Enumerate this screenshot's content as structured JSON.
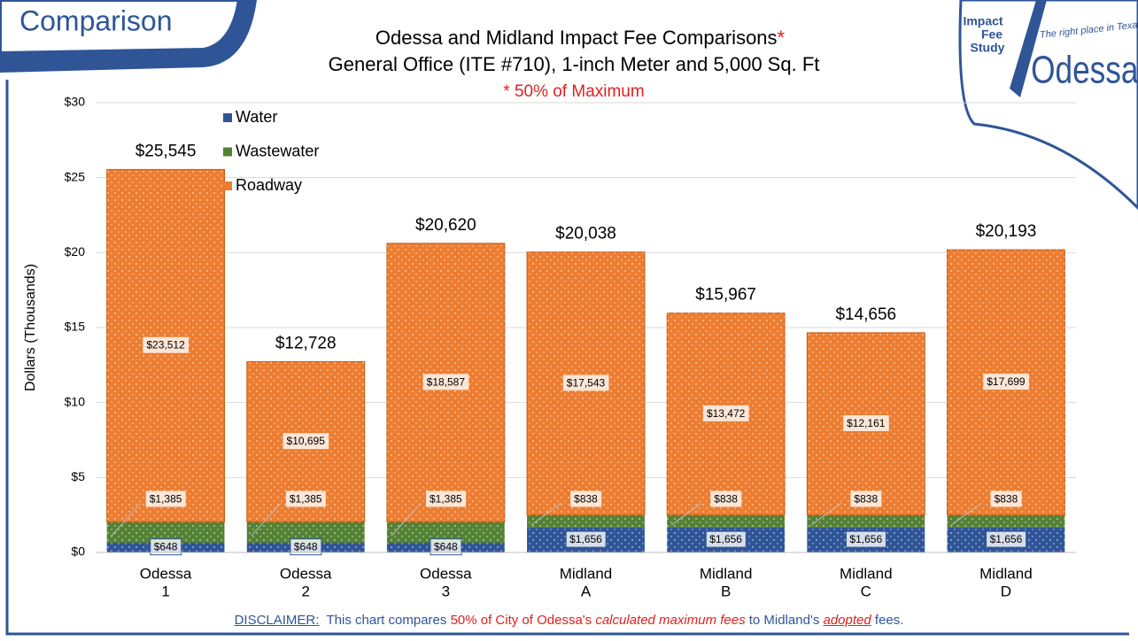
{
  "header": "Comparison",
  "logo": {
    "badge": [
      "Impact",
      "Fee",
      "Study"
    ],
    "tagline": "The right place in Texas",
    "name": "Odessa"
  },
  "chart_data": {
    "type": "stacked_bar",
    "title": "Odessa and Midland Impact Fee Comparisons",
    "title_mark": "*",
    "subtitle": "General Office (ITE #710), 1-inch Meter and 5,000 Sq. Ft",
    "note": "* 50% of Maximum",
    "ylabel": "Dollars (Thousands)",
    "categories": [
      [
        "Odessa",
        "1"
      ],
      [
        "Odessa",
        "2"
      ],
      [
        "Odessa",
        "3"
      ],
      [
        "Midland",
        "A"
      ],
      [
        "Midland",
        "B"
      ],
      [
        "Midland",
        "C"
      ],
      [
        "Midland",
        "D"
      ]
    ],
    "series": [
      {
        "name": "Water",
        "color": "#2f5597",
        "values": [
          0.648,
          0.648,
          0.648,
          1.656,
          1.656,
          1.656,
          1.656
        ],
        "value_labels": [
          "$648",
          "$648",
          "$648",
          "$1,656",
          "$1,656",
          "$1,656",
          "$1,656"
        ]
      },
      {
        "name": "Wastewater",
        "color": "#548235",
        "values": [
          1.385,
          1.385,
          1.385,
          0.838,
          0.838,
          0.838,
          0.838
        ],
        "value_labels": [
          "$1,385",
          "$1,385",
          "$1,385",
          "$838",
          "$838",
          "$838",
          "$838"
        ]
      },
      {
        "name": "Roadway",
        "color": "#ed7d31",
        "values": [
          23.512,
          10.695,
          18.587,
          17.543,
          13.472,
          12.161,
          17.699
        ],
        "value_labels": [
          "$23,512",
          "$10,695",
          "$18,587",
          "$17,543",
          "$13,472",
          "$12,161",
          "$17,699"
        ]
      }
    ],
    "totals": {
      "values": [
        25.545,
        12.728,
        20.62,
        20.038,
        15.967,
        14.656,
        20.193
      ],
      "value_labels": [
        "$25,545",
        "$12,728",
        "$20,620",
        "$20,038",
        "$15,967",
        "$14,656",
        "$20,193"
      ]
    },
    "ylim": [
      0,
      30
    ],
    "yticks": [
      {
        "value": 0,
        "label": "$0"
      },
      {
        "value": 5,
        "label": "$5"
      },
      {
        "value": 10,
        "label": "$10"
      },
      {
        "value": 15,
        "label": "$15"
      },
      {
        "value": 20,
        "label": "$20"
      },
      {
        "value": 25,
        "label": "$25"
      },
      {
        "value": 30,
        "label": "$30"
      }
    ],
    "grid": true,
    "legend": "upper left"
  },
  "disclaimer": [
    "DISCLAIMER:",
    "This chart compares",
    "50% of City of Odessa's",
    "calculated maximum fees",
    "to Midland's",
    "adopted",
    "fees."
  ]
}
